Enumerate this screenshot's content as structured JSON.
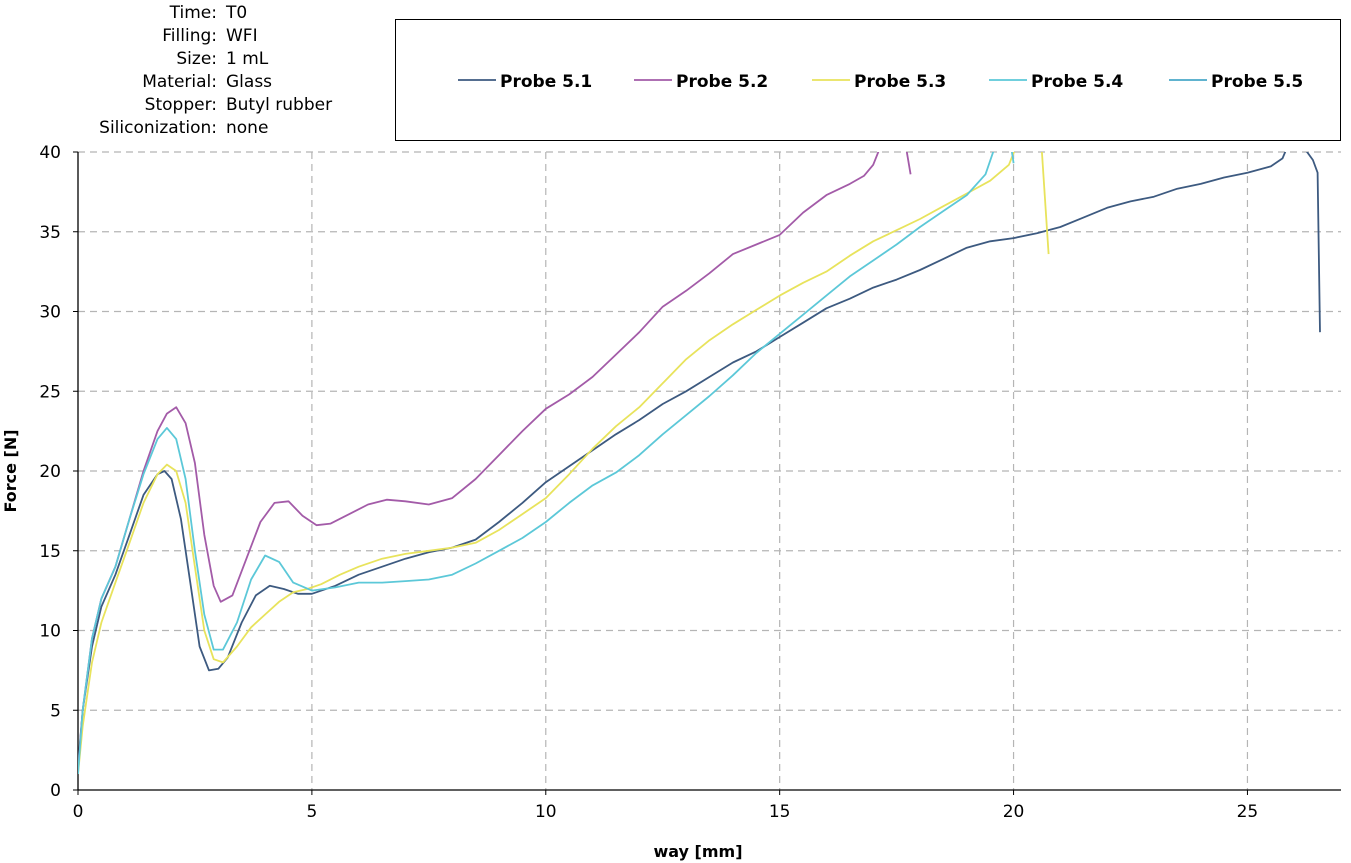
{
  "meta": [
    {
      "key": "Time:",
      "value": "T0"
    },
    {
      "key": "Filling:",
      "value": "WFI"
    },
    {
      "key": "Size:",
      "value": "1 mL"
    },
    {
      "key": "Material:",
      "value": "Glass"
    },
    {
      "key": "Stopper:",
      "value": "Butyl rubber"
    },
    {
      "key": "Siliconization:",
      "value": "none"
    }
  ],
  "chart_data": {
    "type": "line",
    "xlabel": "way [mm]",
    "ylabel": "Force [N]",
    "xlim": [
      0,
      27
    ],
    "ylim": [
      0,
      40
    ],
    "xticks": [
      0,
      5,
      10,
      15,
      20,
      25
    ],
    "yticks": [
      0,
      5,
      10,
      15,
      20,
      25,
      30,
      35,
      40
    ],
    "grid": true,
    "legend_position": "top",
    "series": [
      {
        "name": "Probe 5.1",
        "color": "#3d5a80",
        "points": [
          [
            0,
            1.5
          ],
          [
            0.1,
            5
          ],
          [
            0.3,
            9
          ],
          [
            0.5,
            11.5
          ],
          [
            0.8,
            13.5
          ],
          [
            1.1,
            16
          ],
          [
            1.4,
            18.5
          ],
          [
            1.7,
            19.8
          ],
          [
            1.85,
            20
          ],
          [
            2.0,
            19.5
          ],
          [
            2.2,
            17
          ],
          [
            2.4,
            13
          ],
          [
            2.6,
            9
          ],
          [
            2.8,
            7.5
          ],
          [
            3.0,
            7.6
          ],
          [
            3.2,
            8.3
          ],
          [
            3.5,
            10.5
          ],
          [
            3.8,
            12.2
          ],
          [
            4.1,
            12.8
          ],
          [
            4.4,
            12.6
          ],
          [
            4.7,
            12.3
          ],
          [
            5.0,
            12.3
          ],
          [
            5.5,
            12.8
          ],
          [
            6.0,
            13.5
          ],
          [
            6.5,
            14
          ],
          [
            7.0,
            14.5
          ],
          [
            7.5,
            14.9
          ],
          [
            8.0,
            15.2
          ],
          [
            8.5,
            15.7
          ],
          [
            9.0,
            16.8
          ],
          [
            9.5,
            18
          ],
          [
            10.0,
            19.3
          ],
          [
            10.5,
            20.3
          ],
          [
            11.0,
            21.3
          ],
          [
            11.5,
            22.3
          ],
          [
            12.0,
            23.2
          ],
          [
            12.5,
            24.2
          ],
          [
            13.0,
            25
          ],
          [
            13.5,
            25.9
          ],
          [
            14.0,
            26.8
          ],
          [
            14.5,
            27.5
          ],
          [
            15.0,
            28.4
          ],
          [
            15.5,
            29.3
          ],
          [
            16.0,
            30.2
          ],
          [
            16.5,
            30.8
          ],
          [
            17.0,
            31.5
          ],
          [
            17.5,
            32
          ],
          [
            18.0,
            32.6
          ],
          [
            18.5,
            33.3
          ],
          [
            19.0,
            34
          ],
          [
            19.5,
            34.4
          ],
          [
            20.0,
            34.6
          ],
          [
            20.5,
            34.9
          ],
          [
            21.0,
            35.3
          ],
          [
            21.5,
            35.9
          ],
          [
            22.0,
            36.5
          ],
          [
            22.5,
            36.9
          ],
          [
            23.0,
            37.2
          ],
          [
            23.5,
            37.7
          ],
          [
            24.0,
            38
          ],
          [
            24.5,
            38.4
          ],
          [
            25.0,
            38.7
          ],
          [
            25.5,
            39.1
          ],
          [
            25.75,
            39.6
          ],
          [
            25.85,
            40.3
          ],
          [
            26.2,
            40.3
          ],
          [
            26.4,
            39.5
          ],
          [
            26.5,
            38.7
          ],
          [
            26.55,
            28.7
          ]
        ]
      },
      {
        "name": "Probe 5.2",
        "color": "#a35ba8",
        "points": [
          [
            0,
            1.2
          ],
          [
            0.1,
            5
          ],
          [
            0.3,
            9.5
          ],
          [
            0.5,
            12
          ],
          [
            0.8,
            14
          ],
          [
            1.1,
            17
          ],
          [
            1.4,
            20
          ],
          [
            1.7,
            22.5
          ],
          [
            1.9,
            23.6
          ],
          [
            2.1,
            24
          ],
          [
            2.3,
            23
          ],
          [
            2.5,
            20.5
          ],
          [
            2.7,
            16
          ],
          [
            2.9,
            12.8
          ],
          [
            3.05,
            11.8
          ],
          [
            3.3,
            12.2
          ],
          [
            3.6,
            14.5
          ],
          [
            3.9,
            16.8
          ],
          [
            4.2,
            18
          ],
          [
            4.5,
            18.1
          ],
          [
            4.8,
            17.2
          ],
          [
            5.1,
            16.6
          ],
          [
            5.4,
            16.7
          ],
          [
            5.8,
            17.3
          ],
          [
            6.2,
            17.9
          ],
          [
            6.6,
            18.2
          ],
          [
            7.0,
            18.1
          ],
          [
            7.5,
            17.9
          ],
          [
            8.0,
            18.3
          ],
          [
            8.5,
            19.5
          ],
          [
            9.0,
            21
          ],
          [
            9.5,
            22.5
          ],
          [
            10.0,
            23.9
          ],
          [
            10.5,
            24.8
          ],
          [
            11.0,
            25.9
          ],
          [
            11.5,
            27.3
          ],
          [
            12.0,
            28.7
          ],
          [
            12.5,
            30.3
          ],
          [
            13.0,
            31.3
          ],
          [
            13.5,
            32.4
          ],
          [
            14.0,
            33.6
          ],
          [
            14.5,
            34.2
          ],
          [
            15.0,
            34.8
          ],
          [
            15.5,
            36.2
          ],
          [
            16.0,
            37.3
          ],
          [
            16.5,
            38
          ],
          [
            16.8,
            38.5
          ],
          [
            17.0,
            39.2
          ],
          [
            17.15,
            40.3
          ]
        ],
        "points2": [
          [
            17.7,
            40.3
          ],
          [
            17.8,
            38.6
          ]
        ]
      },
      {
        "name": "Probe 5.3",
        "color": "#e8e35c",
        "points": [
          [
            0,
            1
          ],
          [
            0.1,
            4
          ],
          [
            0.3,
            8
          ],
          [
            0.5,
            10.5
          ],
          [
            0.8,
            13
          ],
          [
            1.1,
            15.5
          ],
          [
            1.4,
            18
          ],
          [
            1.7,
            19.8
          ],
          [
            1.9,
            20.4
          ],
          [
            2.1,
            20
          ],
          [
            2.3,
            18
          ],
          [
            2.5,
            14
          ],
          [
            2.7,
            10
          ],
          [
            2.9,
            8.2
          ],
          [
            3.1,
            8
          ],
          [
            3.4,
            9
          ],
          [
            3.7,
            10.2
          ],
          [
            4.0,
            11
          ],
          [
            4.3,
            11.8
          ],
          [
            4.6,
            12.4
          ],
          [
            4.9,
            12.6
          ],
          [
            5.2,
            12.9
          ],
          [
            5.6,
            13.5
          ],
          [
            6.0,
            14
          ],
          [
            6.5,
            14.5
          ],
          [
            7.0,
            14.8
          ],
          [
            7.5,
            15
          ],
          [
            8.0,
            15.2
          ],
          [
            8.5,
            15.5
          ],
          [
            9.0,
            16.3
          ],
          [
            9.5,
            17.3
          ],
          [
            10.0,
            18.3
          ],
          [
            10.5,
            19.8
          ],
          [
            11.0,
            21.4
          ],
          [
            11.5,
            22.8
          ],
          [
            12.0,
            24
          ],
          [
            12.5,
            25.5
          ],
          [
            13.0,
            27
          ],
          [
            13.5,
            28.2
          ],
          [
            14.0,
            29.2
          ],
          [
            14.5,
            30.1
          ],
          [
            15.0,
            31
          ],
          [
            15.5,
            31.8
          ],
          [
            16.0,
            32.5
          ],
          [
            16.5,
            33.5
          ],
          [
            17.0,
            34.4
          ],
          [
            17.5,
            35.1
          ],
          [
            18.0,
            35.8
          ],
          [
            18.5,
            36.6
          ],
          [
            19.0,
            37.4
          ],
          [
            19.5,
            38.2
          ],
          [
            19.9,
            39.2
          ],
          [
            20.05,
            40.3
          ]
        ],
        "points2": [
          [
            20.6,
            40.3
          ],
          [
            20.75,
            33.6
          ]
        ]
      },
      {
        "name": "Probe 5.4",
        "color": "#5cc8d8",
        "points": [
          [
            0,
            1
          ],
          [
            0.1,
            5
          ],
          [
            0.3,
            9.5
          ],
          [
            0.5,
            12
          ],
          [
            0.8,
            14
          ],
          [
            1.1,
            17
          ],
          [
            1.4,
            19.8
          ],
          [
            1.7,
            22
          ],
          [
            1.9,
            22.7
          ],
          [
            2.1,
            22
          ],
          [
            2.3,
            19.5
          ],
          [
            2.5,
            15
          ],
          [
            2.7,
            11
          ],
          [
            2.9,
            8.8
          ],
          [
            3.1,
            8.8
          ],
          [
            3.4,
            10.5
          ],
          [
            3.7,
            13.2
          ],
          [
            4.0,
            14.7
          ],
          [
            4.3,
            14.3
          ],
          [
            4.6,
            13
          ],
          [
            5.0,
            12.5
          ],
          [
            5.5,
            12.7
          ],
          [
            6.0,
            13
          ],
          [
            6.5,
            13
          ],
          [
            7.0,
            13.1
          ],
          [
            7.5,
            13.2
          ],
          [
            8.0,
            13.5
          ],
          [
            8.5,
            14.2
          ],
          [
            9.0,
            15
          ],
          [
            9.5,
            15.8
          ],
          [
            10.0,
            16.8
          ],
          [
            10.5,
            18
          ],
          [
            11.0,
            19.1
          ],
          [
            11.5,
            19.9
          ],
          [
            12.0,
            21
          ],
          [
            12.5,
            22.3
          ],
          [
            13.0,
            23.5
          ],
          [
            13.5,
            24.7
          ],
          [
            14.0,
            26
          ],
          [
            14.5,
            27.4
          ],
          [
            15.0,
            28.6
          ],
          [
            15.5,
            29.8
          ],
          [
            16.0,
            31
          ],
          [
            16.5,
            32.2
          ],
          [
            17.0,
            33.2
          ],
          [
            17.5,
            34.2
          ],
          [
            18.0,
            35.3
          ],
          [
            18.5,
            36.3
          ],
          [
            19.0,
            37.3
          ],
          [
            19.4,
            38.6
          ],
          [
            19.6,
            40.3
          ]
        ],
        "points2": [
          [
            19.95,
            40.3
          ],
          [
            20.0,
            39.3
          ]
        ]
      },
      {
        "name": "Probe 5.5",
        "color": "#4aa8c8",
        "points": [],
        "points2": []
      }
    ]
  }
}
